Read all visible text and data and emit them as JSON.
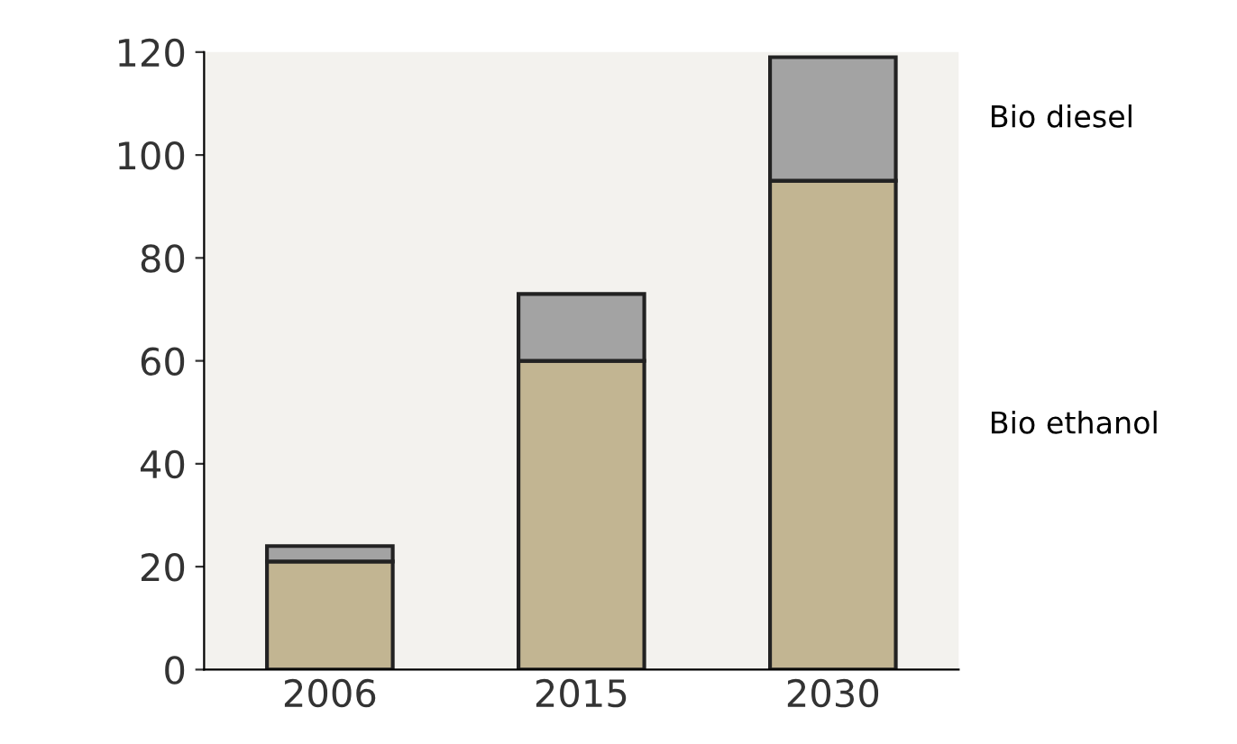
{
  "chart_data": {
    "type": "bar",
    "stacked": true,
    "categories": [
      "2006",
      "2015",
      "2030"
    ],
    "series": [
      {
        "name": "Bio ethanol",
        "color": "#c2b592",
        "values": [
          21,
          60,
          95
        ]
      },
      {
        "name": "Bio diesel",
        "color": "#a3a3a3",
        "values": [
          3,
          13,
          24
        ]
      }
    ],
    "ylim": [
      0,
      120
    ],
    "yticks": [
      0,
      20,
      40,
      60,
      80,
      100,
      120
    ],
    "grid": false,
    "legend": "right"
  }
}
